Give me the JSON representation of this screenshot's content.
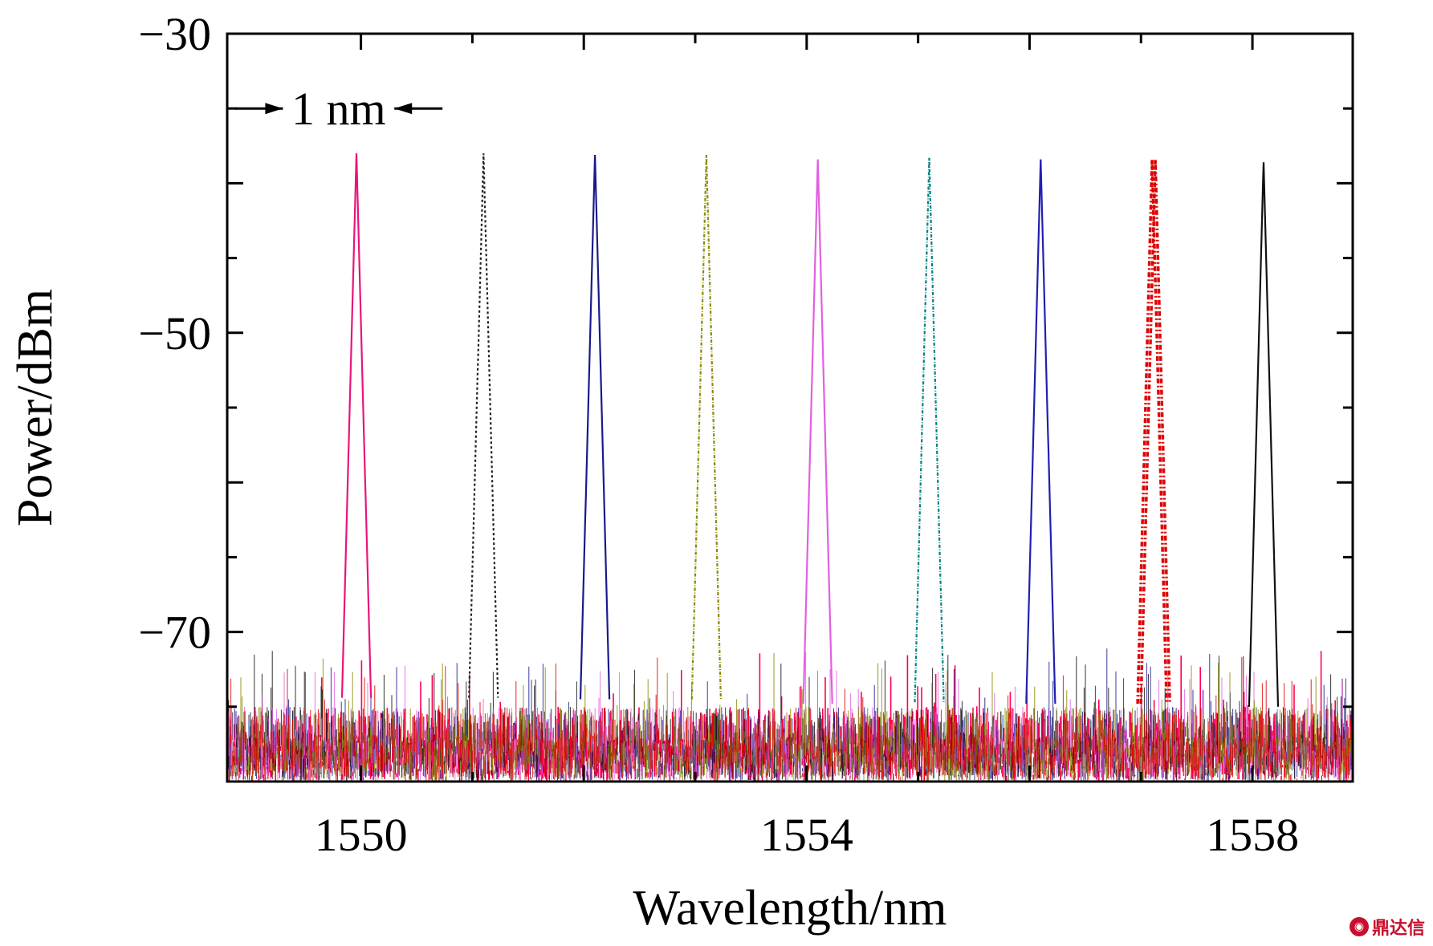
{
  "chart_data": {
    "type": "line",
    "title": "",
    "xlabel": "Wavelength/nm",
    "ylabel": "Power/dBm",
    "xlim": [
      1548.8,
      1558.9
    ],
    "ylim": [
      -80,
      -30
    ],
    "xticks": [
      1550,
      1554,
      1558
    ],
    "xtick_labels": [
      "1550",
      "1554",
      "1558"
    ],
    "yticks": [
      -30,
      -50,
      -70
    ],
    "ytick_labels": [
      "−30",
      "−50",
      "−70"
    ],
    "noise_floor_dbm": -75,
    "grid": false,
    "legend": "none",
    "series": [
      {
        "peak_nm": 1549.96,
        "peak_dbm": -38.0,
        "color": "#e8157a",
        "dash": "none"
      },
      {
        "peak_nm": 1551.1,
        "peak_dbm": -38.0,
        "color": "#222222",
        "dash": "3,3"
      },
      {
        "peak_nm": 1552.1,
        "peak_dbm": -38.1,
        "color": "#1a1a8c",
        "dash": "none"
      },
      {
        "peak_nm": 1553.1,
        "peak_dbm": -38.1,
        "color": "#8a8a00",
        "dash": "4,2,1,2"
      },
      {
        "peak_nm": 1554.1,
        "peak_dbm": -38.4,
        "color": "#e060e0",
        "dash": "none"
      },
      {
        "peak_nm": 1555.1,
        "peak_dbm": -38.3,
        "color": "#008080",
        "dash": "4,2,1,2"
      },
      {
        "peak_nm": 1556.1,
        "peak_dbm": -38.4,
        "color": "#2020b0",
        "dash": "none"
      },
      {
        "peak_nm": 1557.1,
        "peak_dbm": -38.4,
        "color": "#e00000",
        "dash": "6,3,2,3"
      },
      {
        "peak_nm": 1558.1,
        "peak_dbm": -38.6,
        "color": "#111111",
        "dash": "none"
      }
    ],
    "noise_colors": [
      "#ff0055",
      "#1a1a8c",
      "#111111",
      "#e060e0",
      "#8a8a00",
      "#e00000"
    ],
    "annotation": {
      "text": "1 nm",
      "x_from": 1549.3,
      "x_to": 1550.3,
      "y": -35
    }
  },
  "watermark": {
    "icon": "logo-icon",
    "text": "鼎达信"
  }
}
